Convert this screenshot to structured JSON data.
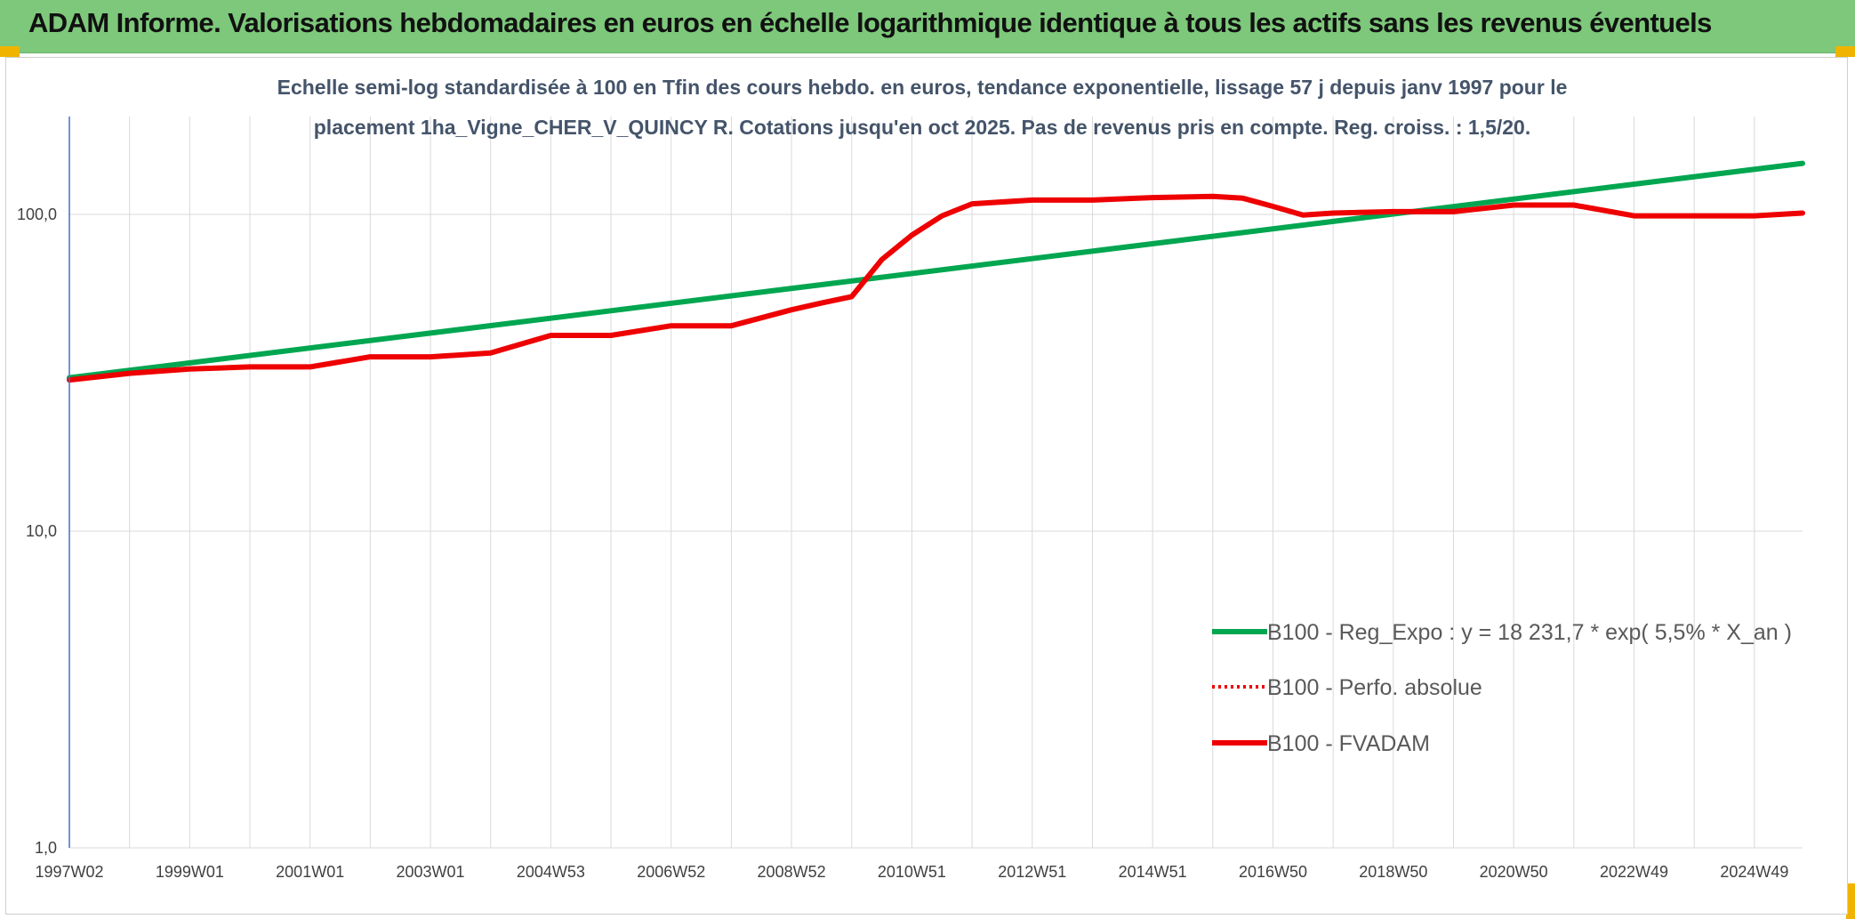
{
  "banner": {
    "title": "ADAM Informe. Valorisations hebdomadaires en euros en échelle logarithmique identique à tous les actifs sans les revenus éventuels"
  },
  "colors": {
    "banner_bg": "#7dc87a",
    "corner_accent": "#f0b400",
    "regression": "#00a650",
    "fvadam": "#ee0000",
    "perfo": "#ee0000",
    "grid": "#d9d9d9",
    "title_text": "#44546a"
  },
  "chart_data": {
    "type": "line",
    "title_lines": [
      "Echelle semi-log standardisée à 100 en Tfin des cours hebdo. en euros, tendance exponentielle, lissage 57 j depuis janv 1997 pour le",
      "placement 1ha_Vigne_CHER_V_QUINCY R. Cotations jusqu'en oct 2025. Pas de revenus pris en compte. Reg. croiss. : 1,5/20."
    ],
    "y_scale": "log",
    "ylim": [
      1,
      180
    ],
    "y_ticks": [
      {
        "value": 1,
        "label": "1,0"
      },
      {
        "value": 10,
        "label": "10,0"
      },
      {
        "value": 100,
        "label": "100,0"
      }
    ],
    "xlim": [
      1997.0,
      2025.8
    ],
    "x_tick_labels": [
      "1997W02",
      "1999W01",
      "2001W01",
      "2003W01",
      "2004W53",
      "2006W52",
      "2008W52",
      "2010W51",
      "2012W51",
      "2014W51",
      "2016W50",
      "2018W50",
      "2020W50",
      "2022W49",
      "2024W49"
    ],
    "x_tick_values": [
      1997.0,
      1999.0,
      2001.0,
      2003.0,
      2005.0,
      2007.0,
      2009.0,
      2011.0,
      2013.0,
      2015.0,
      2017.0,
      2019.0,
      2021.0,
      2023.0,
      2025.0
    ],
    "minor_grid_step_years": 1,
    "legend_position": "right",
    "series": [
      {
        "name": "B100 - Reg_Expo : y = 18 231,7 * exp( 5,5% *  X_an )",
        "style": "solid-thick",
        "color": "#00a650",
        "x": [
          1997.0,
          2025.8
        ],
        "y": [
          30.5,
          145
        ]
      },
      {
        "name": "B100 - Perfo. absolue",
        "style": "dotted",
        "color": "#ee0000",
        "x": [],
        "y": []
      },
      {
        "name": "B100 - FVADAM",
        "style": "solid-thick",
        "color": "#ee0000",
        "x": [
          1997.0,
          1998.0,
          1999.0,
          2000.0,
          2001.0,
          2002.0,
          2003.0,
          2004.0,
          2005.0,
          2006.0,
          2007.0,
          2008.0,
          2009.0,
          2009.5,
          2010.0,
          2010.5,
          2011.0,
          2011.5,
          2012.0,
          2013.0,
          2014.0,
          2015.0,
          2016.0,
          2016.5,
          2017.0,
          2017.5,
          2018.0,
          2019.0,
          2020.0,
          2021.0,
          2022.0,
          2023.0,
          2024.0,
          2025.0,
          2025.8
        ],
        "y": [
          30,
          31.5,
          32.5,
          33,
          33,
          35.5,
          35.5,
          36.5,
          41.5,
          41.5,
          44.5,
          44.5,
          50,
          52.5,
          55,
          72,
          86,
          99,
          108,
          111,
          111,
          113,
          114,
          112.5,
          106,
          99.5,
          101,
          102,
          102,
          107,
          107,
          99,
          99,
          99,
          101
        ]
      }
    ]
  }
}
